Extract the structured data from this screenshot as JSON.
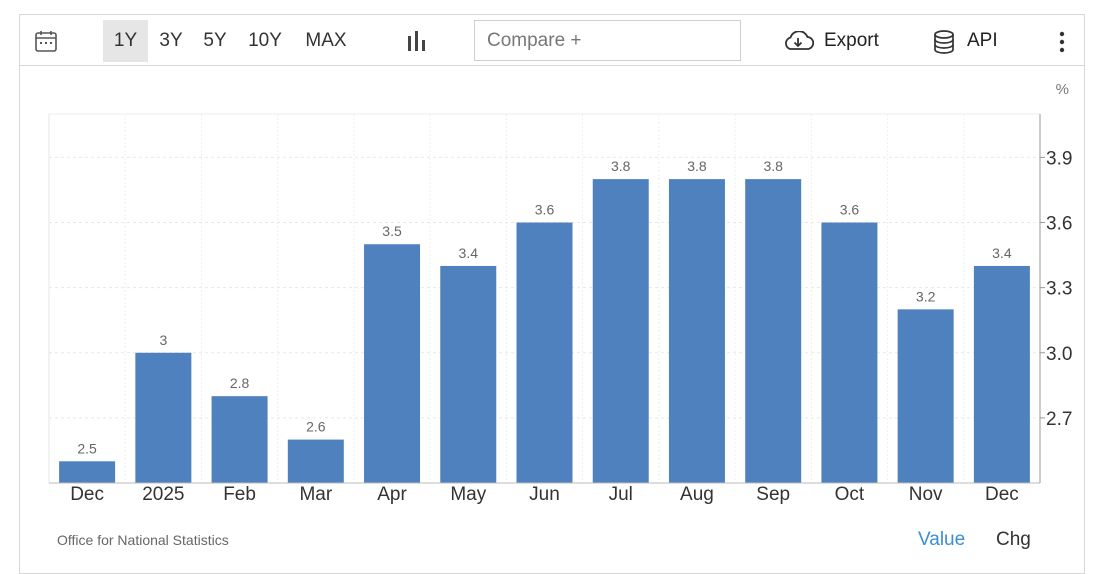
{
  "toolbar": {
    "ranges": [
      "1Y",
      "3Y",
      "5Y",
      "10Y",
      "MAX"
    ],
    "active_range": "1Y",
    "compare_placeholder": "Compare +",
    "export_label": "Export",
    "api_label": "API"
  },
  "footer": {
    "source": "Office for National Statistics",
    "value_label": "Value",
    "chg_label": "Chg"
  },
  "chart_data": {
    "type": "bar",
    "unit": "%",
    "categories": [
      "Dec",
      "2025",
      "Feb",
      "Mar",
      "Apr",
      "May",
      "Jun",
      "Jul",
      "Aug",
      "Sep",
      "Oct",
      "Nov",
      "Dec"
    ],
    "values": [
      2.5,
      3,
      2.8,
      2.6,
      3.5,
      3.4,
      3.6,
      3.8,
      3.8,
      3.8,
      3.6,
      3.2,
      3.4
    ],
    "data_labels": [
      "2.5",
      "3",
      "2.8",
      "2.6",
      "3.5",
      "3.4",
      "3.6",
      "3.8",
      "3.8",
      "3.8",
      "3.6",
      "3.2",
      "3.4"
    ],
    "y_ticks": [
      2.7,
      3.0,
      3.3,
      3.6,
      3.9
    ],
    "y_tick_labels": [
      "2.7",
      "3.0",
      "3.3",
      "3.6",
      "3.9"
    ],
    "ylim": [
      2.4,
      4.1
    ],
    "y_axis_side": "right",
    "grid": true,
    "bar_color": "#4e81bd"
  }
}
